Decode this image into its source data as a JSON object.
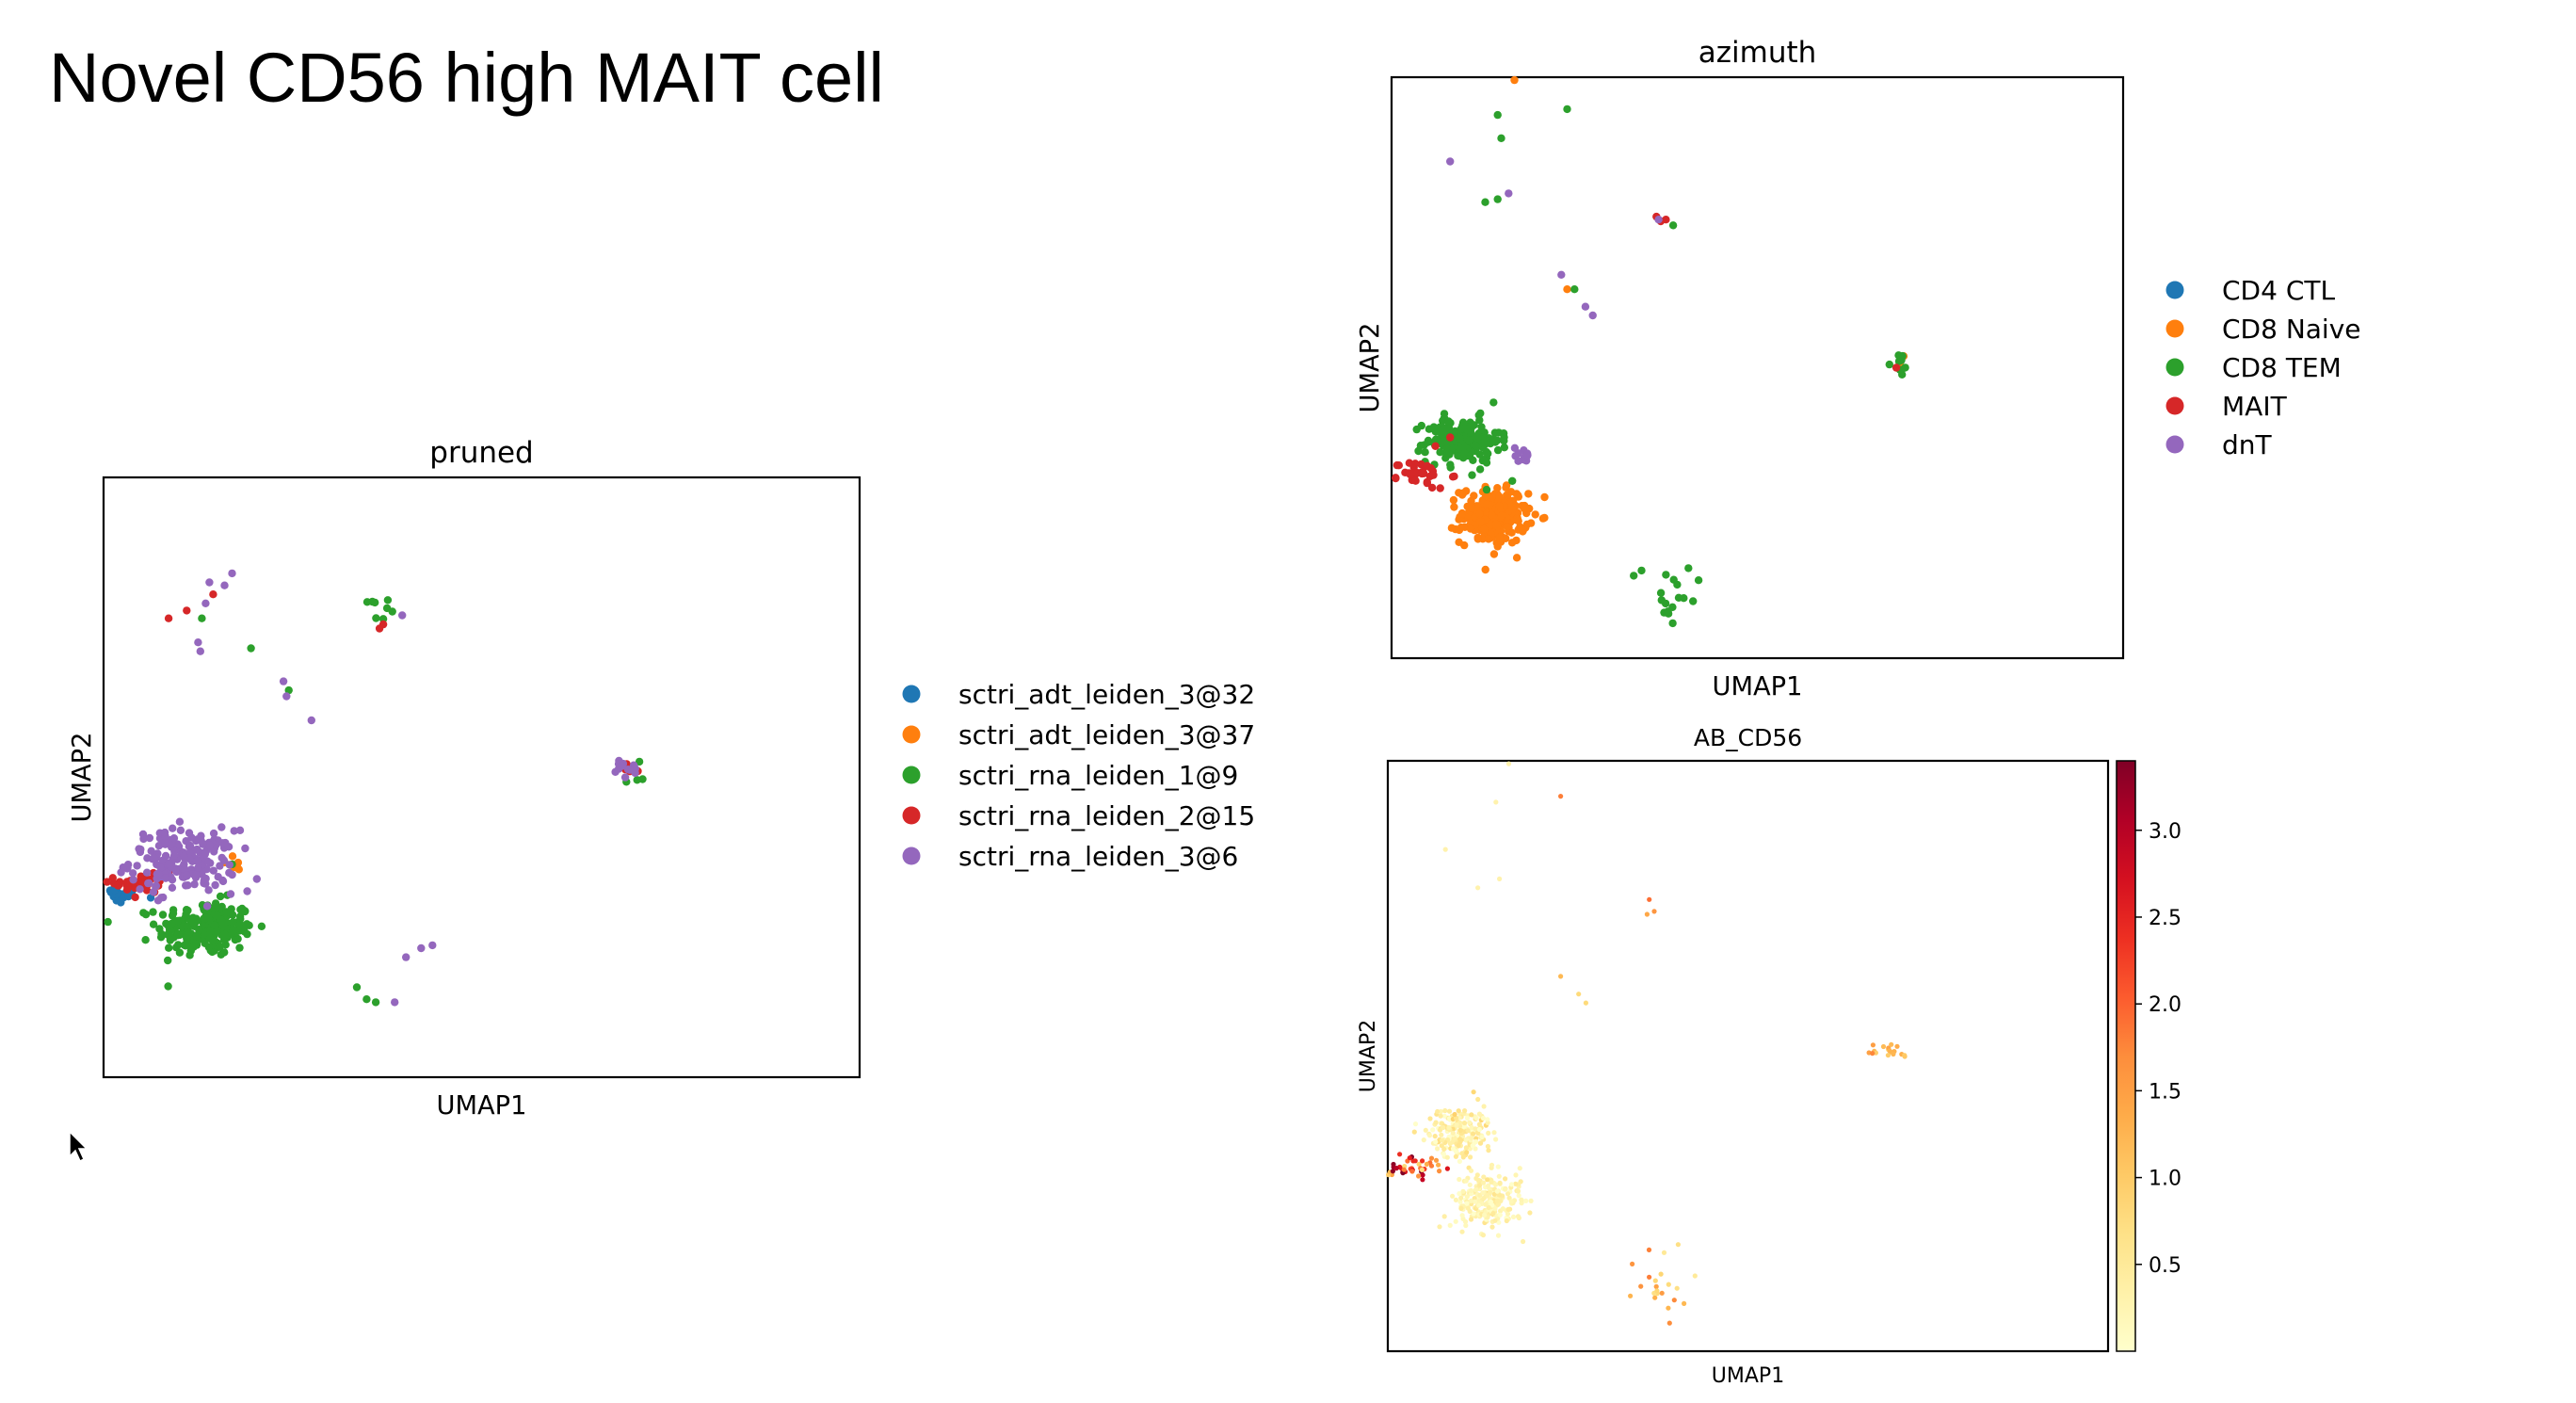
{
  "slide": {
    "title": "Novel CD56 high MAIT cell"
  },
  "chart_data": [
    {
      "id": "pruned",
      "type": "scatter",
      "title": "pruned",
      "xlabel": "UMAP1",
      "ylabel": "UMAP2",
      "xlim": [
        0,
        100
      ],
      "ylim": [
        0,
        100
      ],
      "grid": false,
      "legend": "right",
      "series": [
        {
          "name": "sctri_adt_leiden_3@32",
          "color": "#1f77b4",
          "clusters": [
            {
              "x": 1.8,
              "y": 30.5,
              "sx": 1.6,
              "sy": 0.8,
              "n": 22
            }
          ],
          "points": []
        },
        {
          "name": "sctri_adt_leiden_3@37",
          "color": "#ff7f0e",
          "clusters": [
            {
              "x": 17.5,
              "y": 35.4,
              "sx": 0.8,
              "sy": 1.0,
              "n": 7
            }
          ],
          "points": []
        },
        {
          "name": "sctri_rna_leiden_1@9",
          "color": "#2ca02c",
          "clusters": [
            {
              "x": 13.5,
              "y": 24.8,
              "sx": 3.2,
              "sy": 2.3,
              "n": 220
            },
            {
              "x": 35.8,
              "y": 77.9,
              "sx": 1.0,
              "sy": 1.4,
              "n": 8
            },
            {
              "x": 69.5,
              "y": 50.5,
              "sx": 1.0,
              "sy": 0.9,
              "n": 4
            }
          ],
          "points": [
            [
              19.5,
              71.5
            ],
            [
              24.5,
              64.5
            ],
            [
              13.0,
              76.5
            ],
            [
              33.5,
              15.0
            ],
            [
              36.0,
              12.5
            ],
            [
              34.8,
              13.0
            ],
            [
              17.0,
              35.5
            ]
          ]
        },
        {
          "name": "sctri_rna_leiden_2@15",
          "color": "#d62728",
          "clusters": [
            {
              "x": 5.5,
              "y": 32.5,
              "sx": 2.0,
              "sy": 1.6,
              "n": 34
            },
            {
              "x": 69.0,
              "y": 51.0,
              "sx": 0.8,
              "sy": 0.6,
              "n": 6
            }
          ],
          "points": [
            [
              37.0,
              75.5
            ],
            [
              36.5,
              74.8
            ],
            [
              8.6,
              76.5
            ],
            [
              11.0,
              77.8
            ],
            [
              14.5,
              80.5
            ]
          ]
        },
        {
          "name": "sctri_rna_leiden_3@6",
          "color": "#9467bd",
          "clusters": [
            {
              "x": 10.5,
              "y": 36.0,
              "sx": 3.5,
              "sy": 2.6,
              "n": 190
            },
            {
              "x": 69.3,
              "y": 51.5,
              "sx": 1.1,
              "sy": 0.9,
              "n": 14
            }
          ],
          "points": [
            [
              14.0,
              82.5
            ],
            [
              17.0,
              84.0
            ],
            [
              16.0,
              82.0
            ],
            [
              13.5,
              79.0
            ],
            [
              12.5,
              72.5
            ],
            [
              12.8,
              71.0
            ],
            [
              23.8,
              66.0
            ],
            [
              24.2,
              63.5
            ],
            [
              27.5,
              59.5
            ],
            [
              39.5,
              77.0
            ],
            [
              42.0,
              21.5
            ],
            [
              43.5,
              22.0
            ],
            [
              40.0,
              20.0
            ],
            [
              38.5,
              12.5
            ],
            [
              19.0,
              31.0
            ]
          ]
        }
      ]
    },
    {
      "id": "azimuth",
      "type": "scatter",
      "title": "azimuth",
      "xlabel": "UMAP1",
      "ylabel": "UMAP2",
      "xlim": [
        0,
        100
      ],
      "ylim": [
        0,
        100
      ],
      "grid": false,
      "legend": "right",
      "series": [
        {
          "name": "CD4 CTL",
          "color": "#1f77b4",
          "clusters": [],
          "points": []
        },
        {
          "name": "CD8 Naive",
          "color": "#ff7f0e",
          "clusters": [
            {
              "x": 14.0,
              "y": 24.5,
              "sx": 2.3,
              "sy": 2.4,
              "n": 240
            }
          ],
          "points": [
            [
              16.8,
              99.5
            ],
            [
              24.0,
              63.5
            ],
            [
              69.5,
              50.5
            ],
            [
              70.0,
              52.0
            ]
          ]
        },
        {
          "name": "CD8 TEM",
          "color": "#2ca02c",
          "clusters": [
            {
              "x": 9.8,
              "y": 37.5,
              "sx": 2.5,
              "sy": 1.9,
              "n": 180
            },
            {
              "x": 69.3,
              "y": 50.5,
              "sx": 0.7,
              "sy": 1.1,
              "n": 10
            },
            {
              "x": 38.0,
              "y": 12.0,
              "sx": 3.0,
              "sy": 3.5,
              "n": 18
            }
          ],
          "points": [
            [
              14.5,
              93.5
            ],
            [
              15.0,
              89.5
            ],
            [
              24.0,
              94.5
            ],
            [
              12.8,
              78.5
            ],
            [
              14.5,
              79.0
            ],
            [
              25.0,
              63.5
            ],
            [
              38.5,
              74.5
            ],
            [
              11.0,
              31.5
            ],
            [
              13.0,
              29.0
            ],
            [
              16.5,
              30.5
            ]
          ]
        },
        {
          "name": "MAIT",
          "color": "#d62728",
          "clusters": [
            {
              "x": 3.5,
              "y": 31.5,
              "sx": 2.2,
              "sy": 1.2,
              "n": 40
            }
          ],
          "points": [
            [
              36.2,
              76.0
            ],
            [
              36.8,
              75.2
            ],
            [
              37.5,
              75.5
            ],
            [
              69.0,
              50.0
            ],
            [
              6.0,
              36.5
            ],
            [
              8.0,
              38.0
            ]
          ]
        },
        {
          "name": "dnT",
          "color": "#9467bd",
          "clusters": [
            {
              "x": 17.5,
              "y": 34.8,
              "sx": 0.8,
              "sy": 1.0,
              "n": 12
            }
          ],
          "points": [
            [
              8.0,
              85.5
            ],
            [
              16.0,
              80.0
            ],
            [
              23.2,
              66.0
            ],
            [
              26.5,
              60.5
            ],
            [
              27.5,
              59.0
            ],
            [
              36.5,
              75.5
            ]
          ]
        }
      ]
    },
    {
      "id": "ab_cd56",
      "type": "scatter",
      "title": "AB_CD56",
      "xlabel": "UMAP1",
      "ylabel": "UMAP2",
      "xlim": [
        0,
        100
      ],
      "ylim": [
        0,
        100
      ],
      "grid": false,
      "legend": "colorbar-right",
      "colormap": "YlOrRd",
      "colorbar": {
        "min": 0,
        "max": 3.4,
        "ticks": [
          "0.5",
          "1.0",
          "1.5",
          "2.0",
          "2.5",
          "3.0"
        ]
      },
      "series": [
        {
          "name": "",
          "clusters": [
            {
              "x": 9.8,
              "y": 37.5,
              "sx": 2.5,
              "sy": 2.0,
              "n": 190,
              "v": 0.35,
              "vs": 0.25
            },
            {
              "x": 14.0,
              "y": 25.5,
              "sx": 2.3,
              "sy": 2.4,
              "n": 240,
              "v": 0.25,
              "vs": 0.15
            },
            {
              "x": 3.5,
              "y": 31.0,
              "sx": 2.0,
              "sy": 1.0,
              "n": 40,
              "v": 2.2,
              "vs": 0.7
            },
            {
              "x": 69.5,
              "y": 50.8,
              "sx": 0.9,
              "sy": 1.0,
              "n": 18,
              "v": 1.3,
              "vs": 0.3
            },
            {
              "x": 38.0,
              "y": 12.0,
              "sx": 3.0,
              "sy": 3.5,
              "n": 22,
              "v": 1.1,
              "vs": 0.4
            }
          ],
          "points": [
            [
              16.8,
              99.5,
              0.3
            ],
            [
              15.0,
              93.0,
              0.3
            ],
            [
              24.0,
              94.0,
              1.8
            ],
            [
              8.0,
              85.0,
              0.3
            ],
            [
              12.5,
              78.5,
              0.3
            ],
            [
              15.5,
              80.0,
              0.3
            ],
            [
              36.3,
              76.5,
              1.9
            ],
            [
              37.0,
              74.5,
              1.6
            ],
            [
              36.0,
              74.0,
              1.4
            ],
            [
              24.0,
              63.5,
              1.2
            ],
            [
              26.5,
              60.5,
              0.8
            ],
            [
              27.5,
              59.0,
              0.8
            ],
            [
              0.7,
              30.5,
              3.3
            ],
            [
              0.8,
              31.2,
              3.2
            ],
            [
              1.2,
              31.0,
              3.0
            ]
          ]
        }
      ]
    }
  ]
}
